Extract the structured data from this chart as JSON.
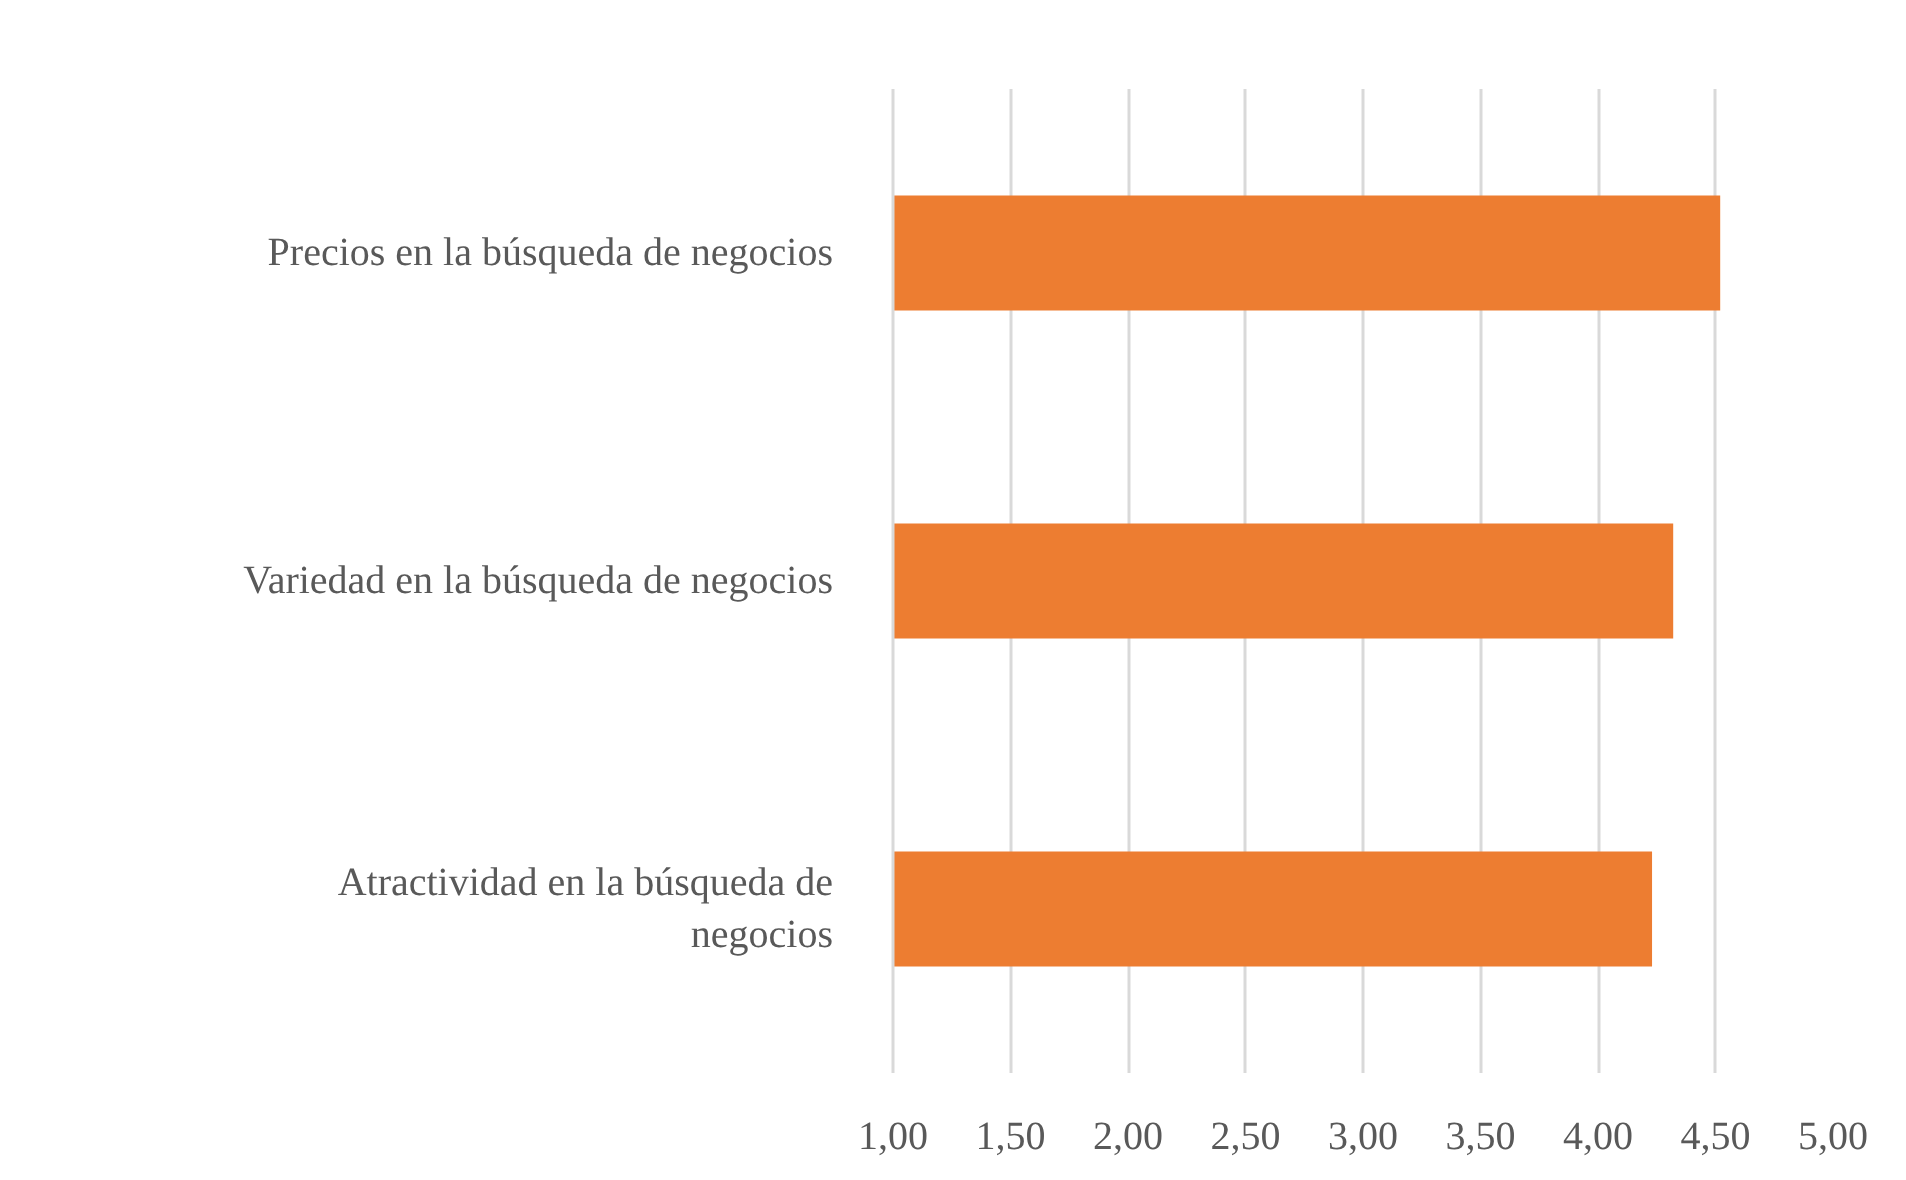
{
  "chart_data": {
    "type": "bar",
    "orientation": "horizontal",
    "categories": [
      "Precios en la búsqueda de negocios",
      "Variedad en la búsqueda de negocios",
      "Atractividad en la búsqueda de negocios"
    ],
    "values": [
      4.52,
      4.32,
      4.23
    ],
    "color": "#ed7d31",
    "xlim": [
      1,
      5
    ],
    "xticks": [
      {
        "value": 1,
        "label": "1,00"
      },
      {
        "value": 1.5,
        "label": "1,50"
      },
      {
        "value": 2,
        "label": "2,00"
      },
      {
        "value": 2.5,
        "label": "2,50"
      },
      {
        "value": 3,
        "label": "3,00"
      },
      {
        "value": 3.5,
        "label": "3,50"
      },
      {
        "value": 4,
        "label": "4,00"
      },
      {
        "value": 4.5,
        "label": "4,50"
      },
      {
        "value": 5,
        "label": "5,00"
      }
    ],
    "grid": "x"
  }
}
